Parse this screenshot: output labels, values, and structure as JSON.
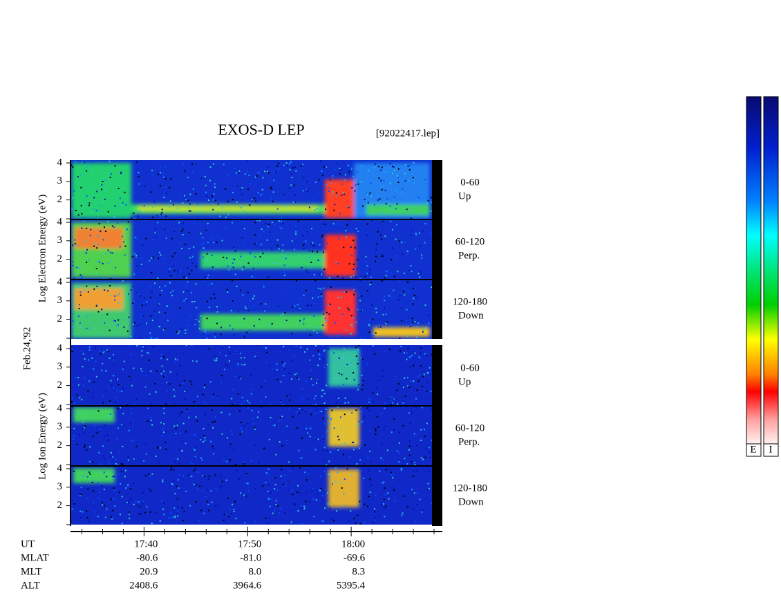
{
  "header": {
    "title": "EXOS-D LEP",
    "file": "[92022417.lep]"
  },
  "date": "Feb.24,'92",
  "energy_axis": {
    "ylim": [
      0.94,
      4.15
    ],
    "yticks": [
      2,
      3,
      4
    ]
  },
  "electron": {
    "label": "Log  Electron  Energy (eV)",
    "panels": [
      {
        "angle": "0-60",
        "direction": "Up"
      },
      {
        "angle": "60-120",
        "direction": "Perp."
      },
      {
        "angle": "120-180",
        "direction": "Down"
      }
    ]
  },
  "ion": {
    "label": "Log  Ion  Energy (eV)",
    "panels": [
      {
        "angle": "0-60",
        "direction": "Up"
      },
      {
        "angle": "60-120",
        "direction": "Perp."
      },
      {
        "angle": "120-180",
        "direction": "Down"
      }
    ]
  },
  "time_axis": {
    "xlim": [
      32.9,
      68.8
    ],
    "xticks": [
      {
        "value": 40,
        "label": "17:40"
      },
      {
        "value": 50,
        "label": "17:50"
      },
      {
        "value": 60,
        "label": "18:00"
      }
    ],
    "minor_ticks": [
      34,
      36,
      38,
      42,
      44,
      46,
      48,
      52,
      54,
      56,
      58,
      62,
      64,
      66,
      68
    ]
  },
  "orbit": {
    "labels": [
      "UT",
      "MLAT",
      "MLT",
      "ALT"
    ],
    "rows": [
      [
        "-80.6",
        "-81.0",
        "-69.6"
      ],
      [
        "20.9",
        "8.0",
        "8.3"
      ],
      [
        "2408.6",
        "3964.6",
        "5395.4"
      ]
    ]
  },
  "colorbars": [
    "E",
    "I"
  ]
}
